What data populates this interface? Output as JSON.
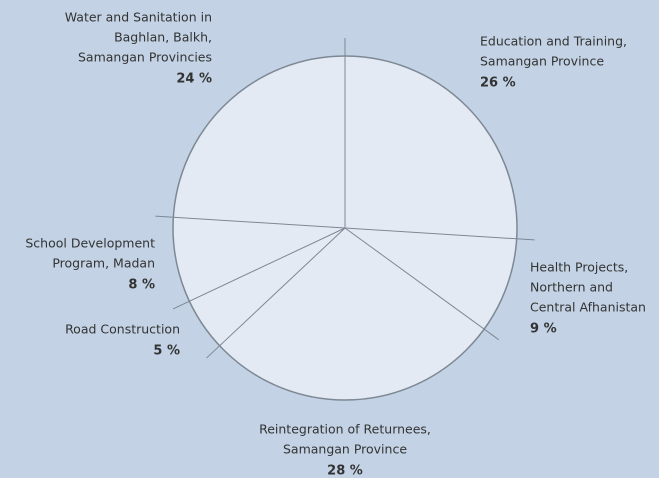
{
  "chart_data": {
    "type": "pie",
    "categories": [
      [
        "Education and Training,",
        "Samangan Province"
      ],
      [
        "Health Projects,",
        "Northern and",
        "Central Afhanistan"
      ],
      [
        "Reintegration of Returnees,",
        "Samangan Province"
      ],
      [
        "Road Construction"
      ],
      [
        "School Development",
        "Program, Madan"
      ],
      [
        "Water and Sanitation in",
        "Baghlan, Balkh,",
        "Samangan Provincies"
      ]
    ],
    "values": [
      26,
      9,
      28,
      5,
      8,
      24
    ],
    "value_labels": [
      "26 %",
      "9 %",
      "28 %",
      "5 %",
      "8 %",
      "24 %"
    ],
    "color": "#e3eaf4"
  }
}
